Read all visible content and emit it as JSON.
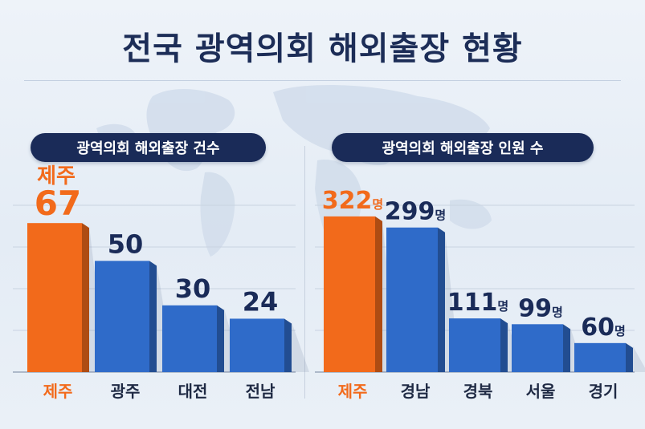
{
  "title": "전국 광역의회 해외출장 현황",
  "colors": {
    "highlight": "#f26a1b",
    "bar": "#2f6bc9",
    "title": "#1c2d57",
    "pill_bg": "#1a2b58",
    "value_text": "#1a2b58"
  },
  "chart_data": [
    {
      "type": "bar",
      "title": "광역의회 해외출장 건수",
      "categories": [
        "제주",
        "광주",
        "대전",
        "전남"
      ],
      "values": [
        67,
        50,
        30,
        24
      ],
      "value_labels": [
        "67",
        "50",
        "30",
        "24"
      ],
      "highlight_index": 0,
      "highlight_label": "제주",
      "unit": "",
      "ylim": [
        0,
        75
      ],
      "grid": true,
      "legend": "none"
    },
    {
      "type": "bar",
      "title": "광역의회 해외출장 인원 수",
      "categories": [
        "제주",
        "경남",
        "경북",
        "서울",
        "경기"
      ],
      "values": [
        322,
        299,
        111,
        99,
        60
      ],
      "value_labels": [
        "322",
        "299",
        "111",
        "99",
        "60"
      ],
      "unit": "명",
      "highlight_index": 0,
      "ylim": [
        0,
        345
      ],
      "grid": true,
      "legend": "none"
    }
  ]
}
